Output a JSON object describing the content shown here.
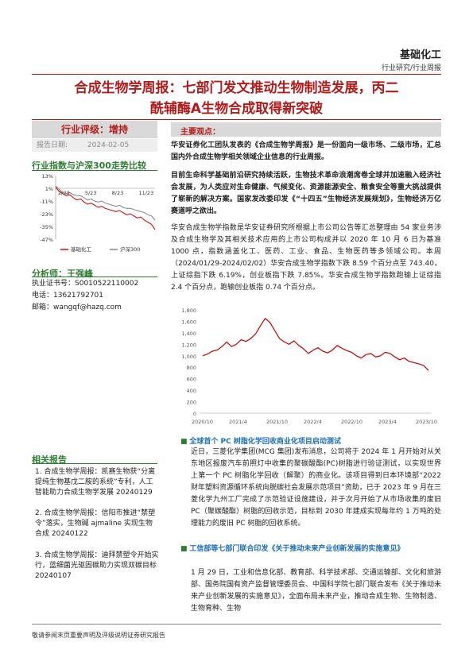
{
  "header": {
    "category": "基础化工",
    "subcategory": "行业研究/行业周报"
  },
  "title_lines": [
    "合成生物学周报：七部门发文推动生物制造发展，丙二",
    "酰辅酶A生物合成取得新突破"
  ],
  "rating": {
    "label": "行业评级：",
    "value": "增持"
  },
  "report_date": {
    "label": "报告日期:",
    "value": "2024-02-05"
  },
  "index_chart": {
    "title": "行业指数与沪深300走势比较",
    "chart_data": {
      "type": "line",
      "x_ticks": [
        "2/23",
        "5/23",
        "8/23",
        "11/23"
      ],
      "y_ticks": [
        "13%",
        "1%",
        "-11%",
        "-23%",
        "-35%",
        "-47%"
      ],
      "ylim": [
        -47,
        13
      ],
      "series": [
        {
          "name": "基础化工",
          "color": "#c00000",
          "values": [
            2,
            -2,
            -4,
            -6,
            -5,
            -8,
            -10,
            -9,
            -12,
            -14,
            -13,
            -15,
            -17,
            -16,
            -18,
            -19,
            -20,
            -21,
            -20,
            -22,
            -24,
            -23,
            -25,
            -27,
            -26,
            -29,
            -31,
            -33,
            -38
          ]
        },
        {
          "name": "沪深300",
          "color": "#7f7f7f",
          "values": [
            3,
            0,
            -3,
            -4,
            -3,
            -5,
            -6,
            -6,
            -8,
            -10,
            -9,
            -11,
            -12,
            -11,
            -13,
            -14,
            -15,
            -16,
            -15,
            -17,
            -18,
            -18,
            -19,
            -20,
            -21,
            -22,
            -24,
            -25,
            -29
          ]
        }
      ]
    }
  },
  "analyst": {
    "title": "分析师：王强峰",
    "license_label": "执业证书号：",
    "license": "S0010522110002",
    "phone_label": "电话：",
    "phone": "13621792701",
    "email_label": "邮箱：",
    "email": "wangqf@hazq.com"
  },
  "related": {
    "title": "相关报告",
    "items": [
      {
        "num": "1.",
        "text": "合成生物学周报：凯赛生物获“分离提纯生物基戊二胺的系统”专利，人工智能助力合成生物学发展 20240129"
      },
      {
        "num": "2.",
        "text": "合成生物学周报：信阳市推进“禁塑令”落实，生物碱 ajmaline 实现生物合成 20240122"
      },
      {
        "num": "3.",
        "text": "合成生物学周报：迪拜禁塑令开始实行，蓝细菌光驱固碳助力实现双碳目标 20240107"
      }
    ]
  },
  "main_points": {
    "title": "主要观点：",
    "intro": "华安证券化工团队发表的《合成生物学周报》是一份面向一级市场、二级市场，汇总国内外合成生物学相关领域企业信息的行业周报。",
    "para2": "目前生命科学基础前沿研究持续活跃，生物技术革命浪潮席卷全球并加速融入经济社会发展，为人类应对生命健康、气候变化、资源能源安全、粮食安全等重大挑战提供了崭新的解决方案。国家发改委印发《“十四五”生物经济发展规划》，生物经济万亿赛道呼之欲出。",
    "para3": "华安合成生物学指数是华安证券研究所根据上市公司公告等汇总整理由 54 家业务涉及合成生物学及其相关技术应用的上市公司构成并以 2020 年 10 月 6 日为基准 1000 点，指数涵盖化工、医药、工业、食品、生物医药等多领域公司。本周（2024/01/29-2024/02/02）华安合成生物学指数下跌 8.59 个百分点至 743.40，上证综指下跌 6.19%，创业板指下跌 7.85%。华安合成生物学指数跑输上证综指 2.4 个百分点，跑输创业板指 0.74 个百分点。"
  },
  "synbio_chart": {
    "chart_data": {
      "type": "line",
      "x_ticks": [
        "2020/10",
        "2021/4",
        "2021/10",
        "2022/4",
        "2022/10",
        "2023/4",
        "2023/10"
      ],
      "y_ticks": [
        "1,800",
        "1,600",
        "1,400",
        "1,200",
        "1,000",
        "800",
        "600",
        "400",
        "200",
        "0"
      ],
      "ylim": [
        0,
        1800
      ],
      "series": [
        {
          "name": "华安合成生物学指数",
          "color": "#c00000",
          "values": [
            1000,
            1030,
            1080,
            1100,
            1160,
            1240,
            1160,
            1200,
            1280,
            1250,
            1300,
            1380,
            1520,
            1650,
            1580,
            1440,
            1300,
            1240,
            1200,
            1260,
            1180,
            1120,
            1040,
            1100,
            1140,
            1080,
            1050,
            1100,
            1180,
            1130,
            1090,
            1060,
            1000,
            960,
            1020,
            1040,
            980,
            1000,
            1060,
            1040,
            980,
            930,
            960,
            900,
            880,
            860,
            830,
            743
          ]
        }
      ]
    }
  },
  "news": [
    {
      "title": "全球首个 PC 树脂化学回收商业化项目启动测试",
      "body": "近日，三菱化学集团(MCG 集团)发布消息，公司将于 2024 年 1 月开始对从关东地区报废汽车前照灯中收集的聚碳酸酯(PC)树脂进行验证测试，以实现世界上第一个 PC 树脂化学回收（解聚）的商业化。该项目得到日本环境部“2022 财年塑料资源循环系统向脱碳社会发展示范项目”资助，已于 2023 年 9 月在三菱化学九州工厂完成了示范验证设施建设，并于次月开始了从市场收集的废旧 PC（聚碳酸酯）树脂的回收示范，目标到 2030 年建成实现每年约 1 万吨的处理能力的废旧 PC 树脂的回收系统。"
    },
    {
      "title": "工信部等七部门联合印发《关于推动未来产业创新发展的实施意见》",
      "body": "1 月 29 日，工业和信息化部、教育部、科学技术部、交通运输部、文化和旅游部、国务院国有资产监督管理委员会、中国科学院七部门联合发布《关于推动未来产业创新发展的实施意见》，全面布局未来产业，推动合成生物、生物制造、生物育种、生物"
    }
  ],
  "footer": "敬请参阅末页重要声明及评级说明证券研究报告"
}
